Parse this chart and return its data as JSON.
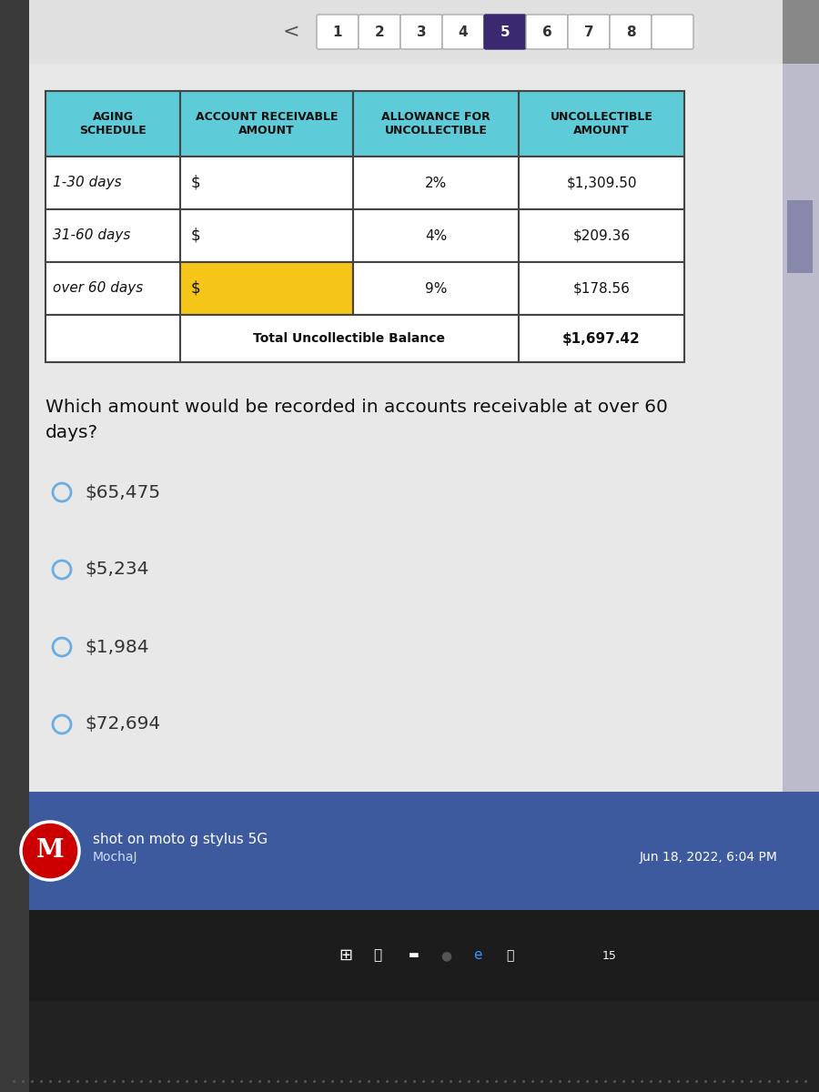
{
  "outer_bg": "#888888",
  "left_bar_color": "#3a3a3a",
  "right_bar_color": "#888888",
  "content_bg": "#e8e8e8",
  "nav_bg": "#e0e0e0",
  "nav_buttons": [
    "1",
    "2",
    "3",
    "4",
    "5",
    "6",
    "7",
    "8"
  ],
  "active_button_idx": 4,
  "table_header_bg": "#5ecbd8",
  "table_header_text": "#111111",
  "table_row_bg": "#ffffff",
  "table_highlight_bg": "#f5c518",
  "table_border": "#444444",
  "col_headers": [
    "AGING\nSCHEDULE",
    "ACCOUNT RECEIVABLE\nAMOUNT",
    "ALLOWANCE FOR\nUNCOLLECTIBLE",
    "UNCOLLECTIBLE\nAMOUNT"
  ],
  "rows": [
    [
      "1-30 days",
      "$",
      "2%",
      "$1,309.50"
    ],
    [
      "31-60 days",
      "$",
      "4%",
      "$209.36"
    ],
    [
      "over 60 days",
      "$",
      "9%",
      "$178.56"
    ]
  ],
  "total_label": "Total Uncollectible Balance",
  "total_value": "$1,697.42",
  "question_line1": "Which amount would be recorded in accounts receivable at over 60",
  "question_line2": "days?",
  "options": [
    "$65,475",
    "$5,234",
    "$1,984",
    "$72,694"
  ],
  "question_font_size": 14.5,
  "option_font_size": 14.5,
  "footer_bg": "#3d5a9e",
  "footer_text1": "shot on moto g stylus 5G",
  "footer_text2": "MochaJ",
  "footer_date": "Jun 18, 2022, 6:04 PM",
  "taskbar_bg": "#1c1c1c",
  "bottom_dark_bg": "#2a2a2a",
  "radio_color": "#6aade4",
  "scroll_bar_color": "#8888aa"
}
